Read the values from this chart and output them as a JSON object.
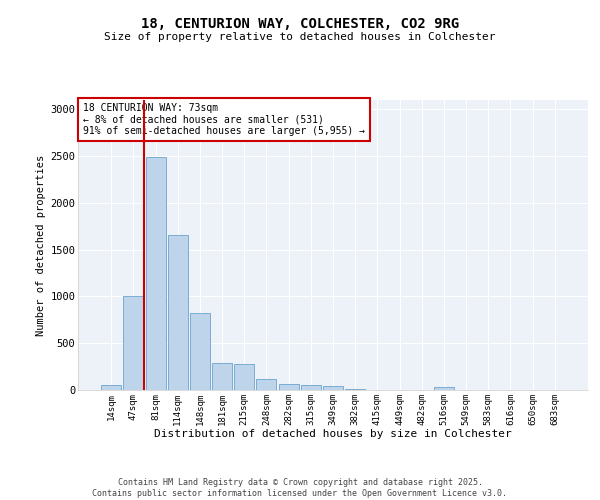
{
  "title1": "18, CENTURION WAY, COLCHESTER, CO2 9RG",
  "title2": "Size of property relative to detached houses in Colchester",
  "xlabel": "Distribution of detached houses by size in Colchester",
  "ylabel": "Number of detached properties",
  "bar_labels": [
    "14sqm",
    "47sqm",
    "81sqm",
    "114sqm",
    "148sqm",
    "181sqm",
    "215sqm",
    "248sqm",
    "282sqm",
    "315sqm",
    "349sqm",
    "382sqm",
    "415sqm",
    "449sqm",
    "482sqm",
    "516sqm",
    "549sqm",
    "583sqm",
    "616sqm",
    "650sqm",
    "683sqm"
  ],
  "bar_values": [
    50,
    1000,
    2490,
    1660,
    820,
    290,
    280,
    120,
    60,
    55,
    40,
    10,
    0,
    0,
    0,
    30,
    0,
    0,
    0,
    0,
    0
  ],
  "bar_color": "#bdd4ea",
  "bar_edge_color": "#7aadd4",
  "vline_x_idx": 1.5,
  "vline_color": "#cc0000",
  "annotation_text": "18 CENTURION WAY: 73sqm\n← 8% of detached houses are smaller (531)\n91% of semi-detached houses are larger (5,955) →",
  "annotation_box_color": "#ffffff",
  "annotation_box_edge": "#cc0000",
  "ylim": [
    0,
    3100
  ],
  "yticks": [
    0,
    500,
    1000,
    1500,
    2000,
    2500,
    3000
  ],
  "bg_color": "#edf2f9",
  "grid_color": "#ffffff",
  "footer1": "Contains HM Land Registry data © Crown copyright and database right 2025.",
  "footer2": "Contains public sector information licensed under the Open Government Licence v3.0."
}
